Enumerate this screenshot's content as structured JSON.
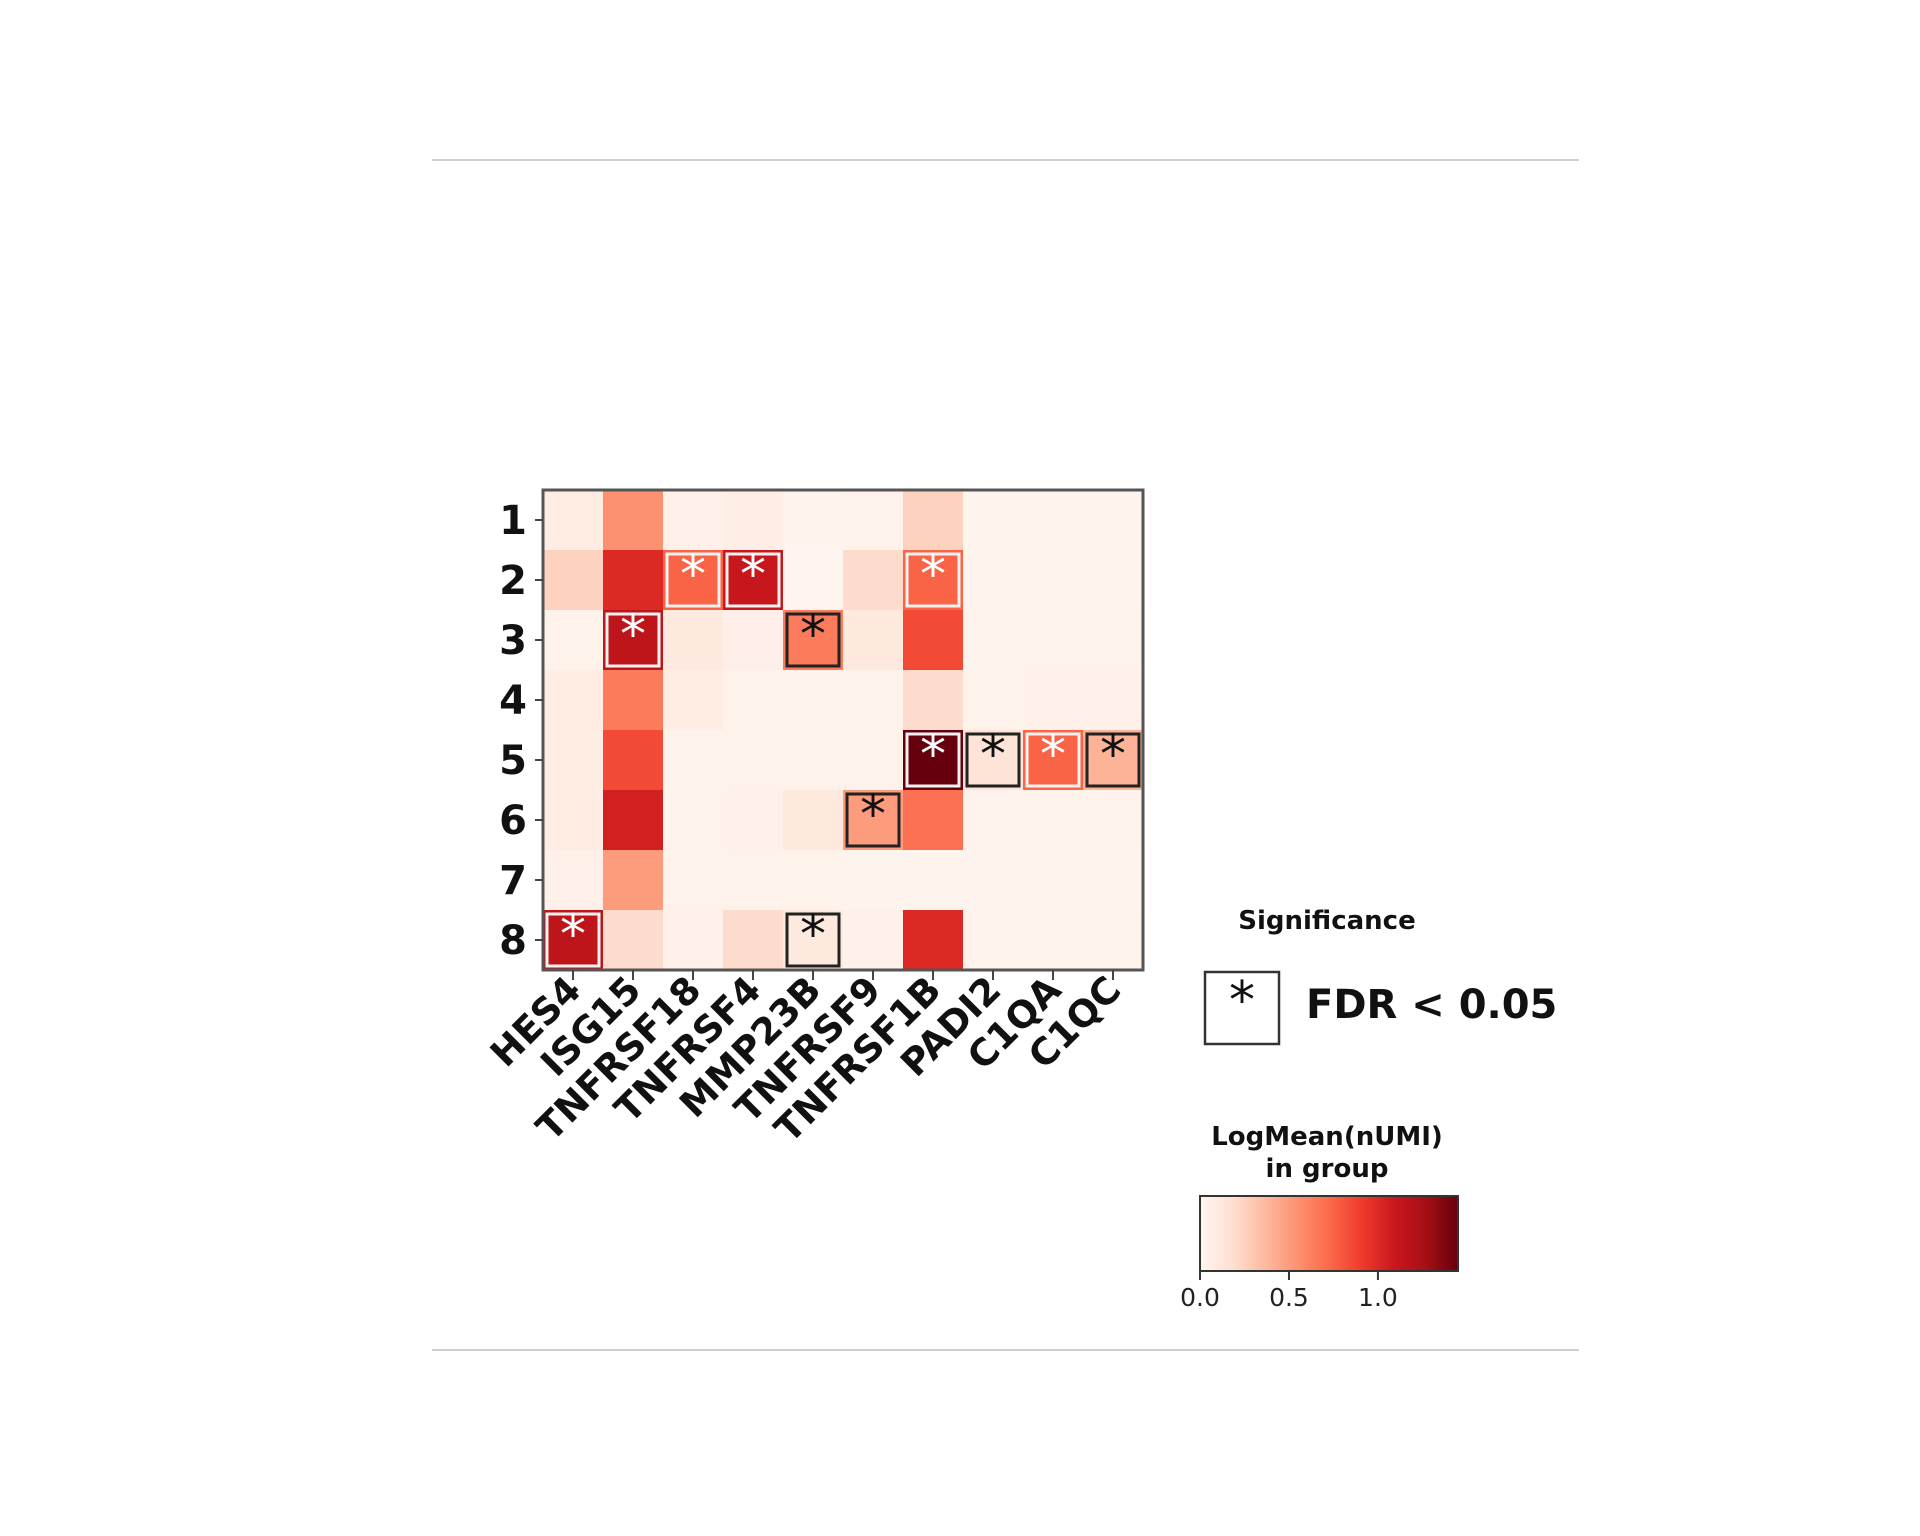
{
  "chart_data": {
    "type": "heatmap",
    "rows": [
      "1",
      "2",
      "3",
      "4",
      "5",
      "6",
      "7",
      "8"
    ],
    "columns": [
      "HES4",
      "ISG15",
      "TNFRSF18",
      "TNFRSF4",
      "MMP23B",
      "TNFRSF9",
      "TNFRSF1B",
      "PADI2",
      "C1QA",
      "C1QC"
    ],
    "values": [
      [
        0.08,
        0.55,
        0.04,
        0.06,
        0.02,
        0.03,
        0.25,
        0.02,
        0.02,
        0.02
      ],
      [
        0.25,
        1.0,
        0.75,
        1.1,
        0.0,
        0.2,
        0.75,
        0.02,
        0.02,
        0.02
      ],
      [
        0.03,
        1.15,
        0.1,
        0.05,
        0.65,
        0.1,
        0.85,
        0.02,
        0.03,
        0.03
      ],
      [
        0.08,
        0.65,
        0.08,
        0.03,
        0.03,
        0.03,
        0.2,
        0.03,
        0.04,
        0.04
      ],
      [
        0.08,
        0.85,
        0.03,
        0.03,
        0.03,
        0.03,
        1.45,
        0.15,
        0.75,
        0.4
      ],
      [
        0.08,
        1.05,
        0.03,
        0.04,
        0.1,
        0.5,
        0.7,
        0.03,
        0.03,
        0.03
      ],
      [
        0.04,
        0.5,
        0.03,
        0.03,
        0.03,
        0.02,
        0.02,
        0.02,
        0.02,
        0.02
      ],
      [
        1.15,
        0.2,
        0.04,
        0.2,
        0.1,
        0.04,
        1.0,
        0.03,
        0.03,
        0.03
      ]
    ],
    "significant": [
      [
        2,
        3
      ],
      [
        2,
        4
      ],
      [
        2,
        7
      ],
      [
        3,
        2
      ],
      [
        3,
        5
      ],
      [
        5,
        7
      ],
      [
        5,
        8
      ],
      [
        5,
        9
      ],
      [
        5,
        10
      ],
      [
        6,
        6
      ],
      [
        8,
        1
      ],
      [
        8,
        5
      ]
    ],
    "colormap": "Reds",
    "color_range": [
      0.0,
      1.45
    ],
    "legend": {
      "significance_title": "Significance",
      "significance_marker": "*",
      "significance_label": "FDR < 0.05",
      "colorbar_title_line1": "LogMean(nUMI)",
      "colorbar_title_line2": "in group",
      "colorbar_ticks": [
        "0.0",
        "0.5",
        "1.0"
      ],
      "colorbar_tick_values": [
        0.0,
        0.5,
        1.0
      ]
    }
  }
}
